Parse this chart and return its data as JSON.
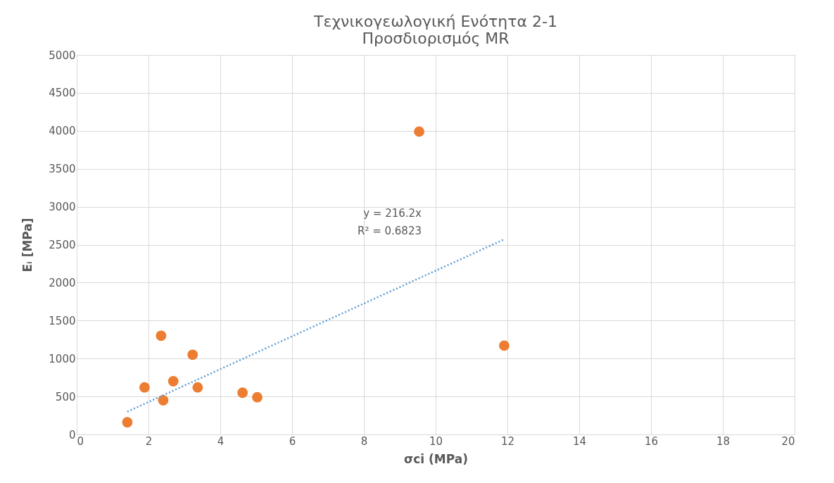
{
  "chart_data": {
    "type": "scatter",
    "title": [
      "Τεχνικογεωλογική Ενότητα 2-1",
      "Προσδιορισμός MR"
    ],
    "xlabel": "σci (MPa)",
    "ylabel": "Eᵢ [MPa]",
    "series": [
      {
        "type": "scatter",
        "color": "#ed7d31",
        "marker": "circle",
        "x": [
          1.41,
          1.89,
          2.41,
          2.35,
          2.69,
          3.23,
          3.37,
          4.62,
          5.03,
          9.54,
          11.91
        ],
        "values": [
          160,
          620,
          450,
          1300,
          700,
          1050,
          620,
          550,
          490,
          3990,
          1170
        ]
      },
      {
        "type": "line",
        "color": "#5b9bd5",
        "line_style": "dotted",
        "x": [
          1.41,
          11.91
        ],
        "values": [
          300,
          2570
        ]
      }
    ],
    "xlim": [
      0,
      20
    ],
    "xticks": [
      0,
      2,
      4,
      6,
      8,
      10,
      12,
      14,
      16,
      18,
      20
    ],
    "ylim": [
      0,
      5000
    ],
    "yticks": [
      0,
      500,
      1000,
      1500,
      2000,
      2500,
      3000,
      3500,
      4000,
      4500,
      5000
    ],
    "grid": true,
    "legend": false,
    "annotations": [
      "y = 216.2x",
      "R² = 0.6823"
    ]
  }
}
